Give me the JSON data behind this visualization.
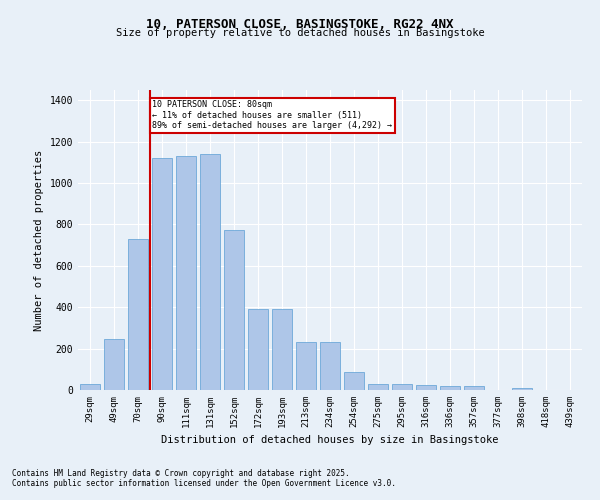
{
  "title1": "10, PATERSON CLOSE, BASINGSTOKE, RG22 4NX",
  "title2": "Size of property relative to detached houses in Basingstoke",
  "xlabel": "Distribution of detached houses by size in Basingstoke",
  "ylabel": "Number of detached properties",
  "categories": [
    "29sqm",
    "49sqm",
    "70sqm",
    "90sqm",
    "111sqm",
    "131sqm",
    "152sqm",
    "172sqm",
    "193sqm",
    "213sqm",
    "234sqm",
    "254sqm",
    "275sqm",
    "295sqm",
    "316sqm",
    "336sqm",
    "357sqm",
    "377sqm",
    "398sqm",
    "418sqm",
    "439sqm"
  ],
  "values": [
    30,
    245,
    730,
    1120,
    1130,
    1140,
    775,
    390,
    390,
    230,
    230,
    85,
    30,
    30,
    25,
    20,
    20,
    0,
    10,
    0,
    0
  ],
  "bar_color": "#aec6e8",
  "bar_edge_color": "#5a9fd4",
  "vline_color": "#cc0000",
  "vline_x": 2.5,
  "annotation_text": "10 PATERSON CLOSE: 80sqm\n← 11% of detached houses are smaller (511)\n89% of semi-detached houses are larger (4,292) →",
  "annotation_box_color": "#ffffff",
  "annotation_box_edge": "#cc0000",
  "bg_color": "#e8f0f8",
  "footer1": "Contains HM Land Registry data © Crown copyright and database right 2025.",
  "footer2": "Contains public sector information licensed under the Open Government Licence v3.0.",
  "ylim": [
    0,
    1450
  ],
  "yticks": [
    0,
    200,
    400,
    600,
    800,
    1000,
    1200,
    1400
  ]
}
